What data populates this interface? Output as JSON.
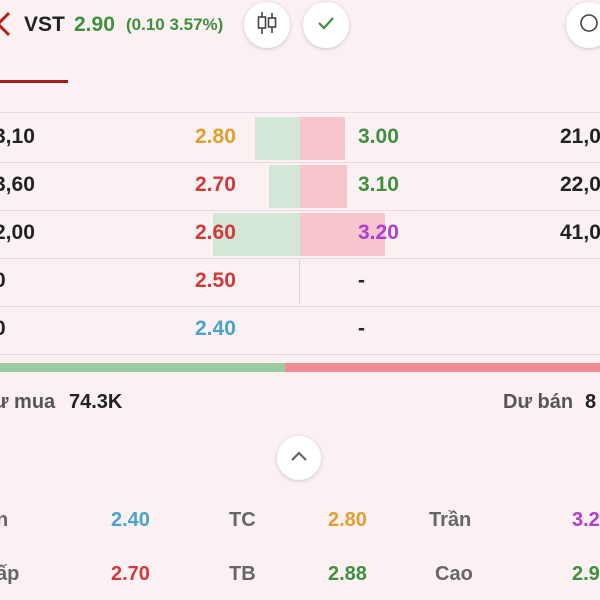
{
  "header": {
    "ticker": "VST",
    "price": "2.90",
    "change": "(0.10 3.57%)",
    "icons": [
      "chevron-left-icon",
      "candlestick-icon",
      "check-icon",
      "more-icon"
    ]
  },
  "order_book": [
    {
      "bid_vol": "3,10",
      "bid_price": "2.80",
      "ask_price": "3.00",
      "ask_vol": "21,0",
      "bid_bar": 0.52,
      "ask_bar": 0.53
    },
    {
      "bid_vol": "3,60",
      "bid_price": "2.70",
      "ask_price": "3.10",
      "ask_vol": "22,0",
      "bid_bar": 0.36,
      "ask_bar": 0.55
    },
    {
      "bid_vol": "2,00",
      "bid_price": "2.60",
      "ask_price": "3.20",
      "ask_vol": "41,0",
      "bid_bar": 1.0,
      "ask_bar": 1.0
    },
    {
      "bid_vol": "0",
      "bid_price": "2.50",
      "ask_price": "-",
      "ask_vol": "",
      "bid_bar": 0,
      "ask_bar": 0
    },
    {
      "bid_vol": "0",
      "bid_price": "2.40",
      "ask_price": "-",
      "ask_vol": "",
      "bid_bar": 0,
      "ask_bar": 0
    }
  ],
  "totals": {
    "buy_label": "ư mua",
    "buy_value": "74.3K",
    "sell_label": "Dư bán",
    "sell_value": "8"
  },
  "stats": [
    {
      "label": "n",
      "value": "2.40",
      "color": "#4aa3c9"
    },
    {
      "label": "TC",
      "value": "2.80",
      "color": "#e0a030"
    },
    {
      "label": "Trần",
      "value": "3.2",
      "color": "#b03cd0"
    },
    {
      "label": "ấp",
      "value": "2.70",
      "color": "#d03a3a"
    },
    {
      "label": "TB",
      "value": "2.88",
      "color": "#3f8f3f"
    },
    {
      "label": "Cao",
      "value": "2.9",
      "color": "#3f8f3f"
    }
  ],
  "colors": {
    "ref": "#e0a030",
    "down": "#d03a3a",
    "up": "#3f8f3f",
    "floor": "#4aa3c9",
    "ceiling": "#b03cd0"
  }
}
